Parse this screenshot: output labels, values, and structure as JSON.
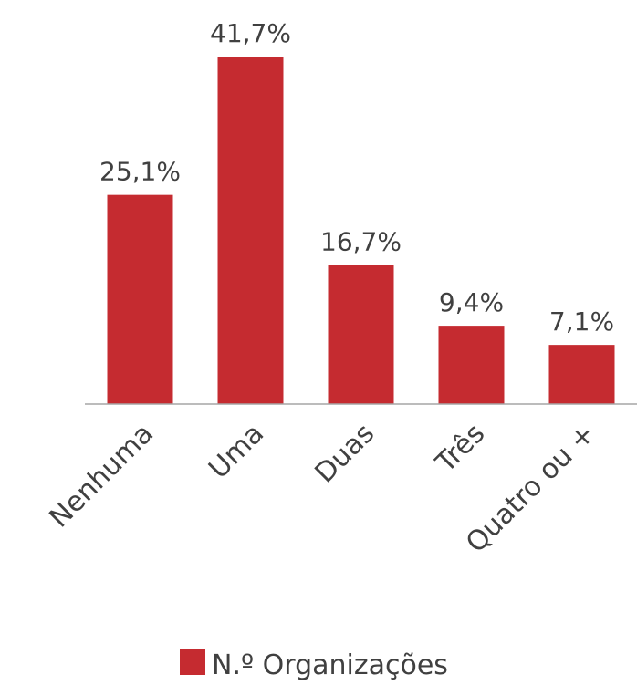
{
  "chart_data": {
    "type": "bar",
    "categories": [
      "Nenhuma",
      "Uma",
      "Duas",
      "Três",
      "Quatro ou +"
    ],
    "series": [
      {
        "name": "N.º Organizações",
        "color": "#c52b30",
        "values": [
          25.1,
          41.7,
          16.7,
          9.4,
          7.1
        ],
        "value_labels": [
          "25,1%",
          "41,7%",
          "16,7%",
          "9,4%",
          "7,1%"
        ]
      }
    ],
    "legend": "bottom"
  }
}
